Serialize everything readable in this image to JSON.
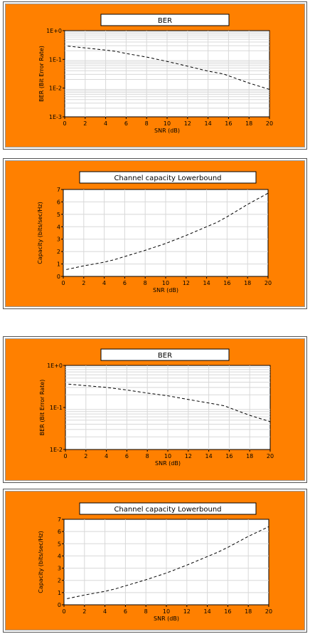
{
  "colors": {
    "panel_bg": "#ff8000",
    "plot_bg": "#ffffff",
    "grid": "#d8d8d8",
    "line": "#000000"
  },
  "chart_data": [
    {
      "type": "line",
      "title": "BER",
      "xlabel": "SNR (dB)",
      "ylabel": "BER (Bit Error Rate)",
      "xlim": [
        0,
        20
      ],
      "ylim": [
        0.001,
        1
      ],
      "yscale": "log",
      "x_ticks": [
        "0",
        "2",
        "4",
        "6",
        "8",
        "10",
        "12",
        "14",
        "16",
        "18",
        "20"
      ],
      "y_ticks": [
        "1E+0",
        "1E-1",
        "1E-2",
        "1E-3"
      ],
      "grid": true,
      "line_style": "dashed",
      "series": [
        {
          "x": [
            0.3,
            2,
            4,
            5,
            6,
            8,
            10,
            12,
            14,
            15.5,
            17,
            18,
            20
          ],
          "y": [
            0.29,
            0.25,
            0.21,
            0.19,
            0.16,
            0.12,
            0.085,
            0.058,
            0.039,
            0.031,
            0.02,
            0.015,
            0.009
          ]
        }
      ]
    },
    {
      "type": "line",
      "title": "Channel capacity Lowerbound",
      "xlabel": "SNR (dB)",
      "ylabel": "Capacity (bits/sec/Hz)",
      "xlim": [
        0,
        20
      ],
      "ylim": [
        0,
        7
      ],
      "x_ticks": [
        "0",
        "2",
        "4",
        "6",
        "8",
        "10",
        "12",
        "14",
        "16",
        "18",
        "20"
      ],
      "y_ticks": [
        "0",
        "1",
        "2",
        "3",
        "4",
        "5",
        "6",
        "7"
      ],
      "grid": true,
      "line_style": "dashed",
      "series": [
        {
          "x": [
            0.3,
            2,
            4,
            5,
            6,
            8,
            10,
            12,
            14,
            15,
            16,
            18,
            20
          ],
          "y": [
            0.55,
            0.85,
            1.15,
            1.35,
            1.6,
            2.1,
            2.65,
            3.3,
            4.0,
            4.35,
            4.8,
            5.8,
            6.7
          ]
        }
      ]
    },
    {
      "type": "line",
      "title": "BER",
      "xlabel": "SNR (dB)",
      "ylabel": "BER (Bit Error Rate)",
      "xlim": [
        0,
        20
      ],
      "ylim": [
        0.01,
        1
      ],
      "yscale": "log",
      "x_ticks": [
        "0",
        "2",
        "4",
        "6",
        "8",
        "10",
        "12",
        "14",
        "16",
        "18",
        "20"
      ],
      "y_ticks": [
        "1E+0",
        "1E-1",
        "1E-2"
      ],
      "grid": true,
      "line_style": "dashed",
      "series": [
        {
          "x": [
            0.3,
            2,
            4,
            6,
            8,
            10,
            12,
            14,
            15.5,
            17,
            18,
            20
          ],
          "y": [
            0.36,
            0.33,
            0.3,
            0.26,
            0.22,
            0.19,
            0.155,
            0.128,
            0.11,
            0.08,
            0.065,
            0.046
          ]
        }
      ]
    },
    {
      "type": "line",
      "title": "Channel capacity Lowerbound",
      "xlabel": "SNR (dB)",
      "ylabel": "Capacity (bits/sec/Hz)",
      "xlim": [
        0,
        20
      ],
      "ylim": [
        0,
        7
      ],
      "x_ticks": [
        "0",
        "2",
        "4",
        "6",
        "8",
        "10",
        "12",
        "14",
        "16",
        "18",
        "20"
      ],
      "y_ticks": [
        "0",
        "1",
        "2",
        "3",
        "4",
        "5",
        "6",
        "7"
      ],
      "grid": true,
      "line_style": "dashed",
      "series": [
        {
          "x": [
            0.3,
            2,
            4,
            5,
            6,
            8,
            10,
            12,
            14,
            15,
            16,
            18,
            20
          ],
          "y": [
            0.5,
            0.8,
            1.1,
            1.3,
            1.55,
            2.05,
            2.6,
            3.25,
            3.95,
            4.3,
            4.7,
            5.6,
            6.4
          ]
        }
      ]
    }
  ]
}
